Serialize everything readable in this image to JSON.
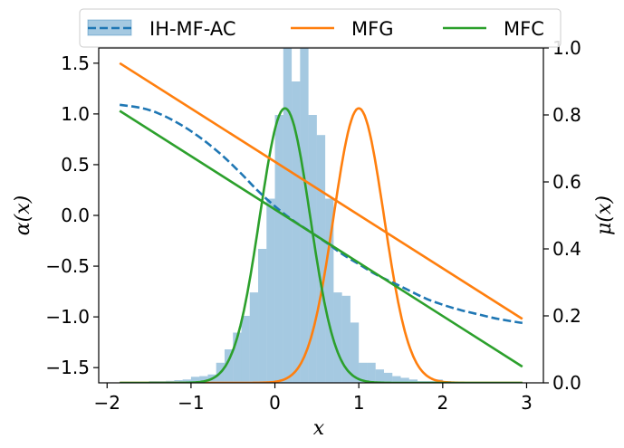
{
  "chart_data": {
    "type": "line",
    "xlabel": "x",
    "ylabel_left": "α(x)",
    "ylabel_right": "μ(x)",
    "xlim": [
      -2.1,
      3.2
    ],
    "ylim_left": [
      -1.65,
      1.65
    ],
    "ylim_right": [
      0.0,
      1.0
    ],
    "x_ticks": [
      -2,
      -1,
      0,
      1,
      2,
      3
    ],
    "x_tick_labels": [
      "−2",
      "−1",
      "0",
      "1",
      "2",
      "3"
    ],
    "y_left_ticks": [
      1.5,
      1.0,
      0.5,
      0.0,
      -0.5,
      -1.0,
      -1.5
    ],
    "y_left_tick_labels": [
      "1.5",
      "1.0",
      "0.5",
      "0.0",
      "−0.5",
      "−1.0",
      "−1.5"
    ],
    "y_right_ticks": [
      1.0,
      0.8,
      0.6,
      0.4,
      0.2,
      0.0
    ],
    "y_right_tick_labels": [
      "1.0",
      "0.8",
      "0.6",
      "0.4",
      "0.2",
      "0.0"
    ],
    "legend": {
      "placement": "top-center, above plot",
      "entries": [
        {
          "label": "IH-MF-AC",
          "color": "#1f77b4",
          "style": "dashed line with shaded histogram"
        },
        {
          "label": "MFG",
          "color": "#ff7f0e",
          "style": "solid"
        },
        {
          "label": "MFC",
          "color": "#2ca02c",
          "style": "solid"
        }
      ]
    },
    "series": [
      {
        "name": "IH-MF-AC",
        "axis": "left",
        "kind": "control",
        "style": "dashed",
        "color": "#1f77b4",
        "points": [
          [
            -1.85,
            1.09
          ],
          [
            -1.6,
            1.06
          ],
          [
            -1.4,
            1.01
          ],
          [
            -1.2,
            0.93
          ],
          [
            -1.0,
            0.83
          ],
          [
            -0.8,
            0.71
          ],
          [
            -0.6,
            0.57
          ],
          [
            -0.4,
            0.41
          ],
          [
            -0.2,
            0.24
          ],
          [
            0.0,
            0.09
          ],
          [
            0.2,
            -0.04
          ],
          [
            0.4,
            -0.15
          ],
          [
            0.6,
            -0.26
          ],
          [
            0.8,
            -0.38
          ],
          [
            1.0,
            -0.48
          ],
          [
            1.2,
            -0.58
          ],
          [
            1.4,
            -0.66
          ],
          [
            1.6,
            -0.74
          ],
          [
            1.8,
            -0.82
          ],
          [
            2.0,
            -0.88
          ],
          [
            2.2,
            -0.93
          ],
          [
            2.4,
            -0.97
          ],
          [
            2.6,
            -1.01
          ],
          [
            2.8,
            -1.04
          ],
          [
            2.95,
            -1.06
          ]
        ]
      },
      {
        "name": "MFG",
        "axis": "left",
        "kind": "control",
        "style": "solid",
        "color": "#ff7f0e",
        "points": [
          [
            -1.85,
            1.5
          ],
          [
            2.95,
            -1.02
          ]
        ]
      },
      {
        "name": "MFC",
        "axis": "left",
        "kind": "control",
        "style": "solid",
        "color": "#2ca02c",
        "points": [
          [
            -1.85,
            1.03
          ],
          [
            2.95,
            -1.49
          ]
        ]
      },
      {
        "name": "MFG",
        "axis": "right",
        "kind": "density",
        "style": "solid",
        "color": "#ff7f0e",
        "gaussian": {
          "mean": 1.0,
          "sd": 0.3,
          "peak": 0.82
        },
        "x_range": [
          -1.85,
          2.95
        ]
      },
      {
        "name": "MFC",
        "axis": "right",
        "kind": "density",
        "style": "solid",
        "color": "#2ca02c",
        "gaussian": {
          "mean": 0.12,
          "sd": 0.3,
          "peak": 0.82
        },
        "x_range": [
          -1.85,
          2.95
        ]
      }
    ],
    "histogram": {
      "name": "IH-MF-AC",
      "axis": "right",
      "color": "#1f77b4",
      "opacity": 0.4,
      "bin_width": 0.1,
      "bins": [
        [
          -1.5,
          0.005
        ],
        [
          -1.4,
          0.005
        ],
        [
          -1.3,
          0.006
        ],
        [
          -1.2,
          0.008
        ],
        [
          -1.1,
          0.01
        ],
        [
          -1.0,
          0.018
        ],
        [
          -0.9,
          0.02
        ],
        [
          -0.8,
          0.025
        ],
        [
          -0.7,
          0.06
        ],
        [
          -0.6,
          0.1
        ],
        [
          -0.5,
          0.15
        ],
        [
          -0.4,
          0.2
        ],
        [
          -0.3,
          0.27
        ],
        [
          -0.2,
          0.4
        ],
        [
          -0.1,
          0.55
        ],
        [
          0.0,
          0.8
        ],
        [
          0.1,
          1.0
        ],
        [
          0.2,
          0.9
        ],
        [
          0.3,
          1.0
        ],
        [
          0.4,
          0.8
        ],
        [
          0.5,
          0.74
        ],
        [
          0.6,
          0.55
        ],
        [
          0.7,
          0.27
        ],
        [
          0.8,
          0.26
        ],
        [
          0.9,
          0.18
        ],
        [
          1.0,
          0.06
        ],
        [
          1.1,
          0.06
        ],
        [
          1.2,
          0.04
        ],
        [
          1.3,
          0.03
        ],
        [
          1.4,
          0.02
        ],
        [
          1.5,
          0.015
        ],
        [
          1.6,
          0.01
        ],
        [
          1.7,
          0.005
        ],
        [
          1.8,
          0.005
        ],
        [
          1.9,
          0.01
        ],
        [
          2.0,
          0.005
        ]
      ]
    }
  }
}
